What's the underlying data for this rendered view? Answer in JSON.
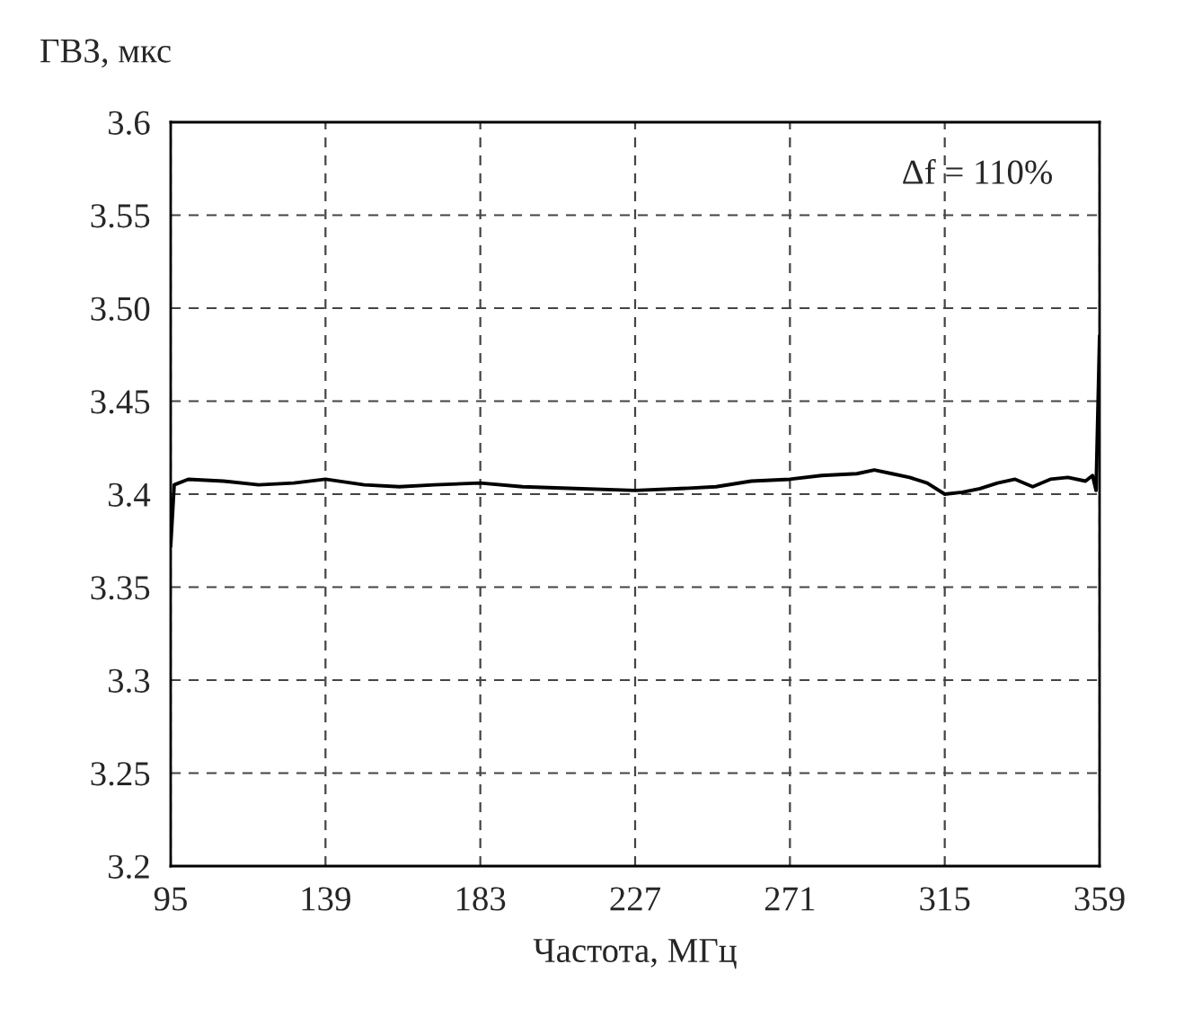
{
  "chart_data": {
    "type": "line",
    "ylabel": "ГВЗ, мкс",
    "xlabel": "Частота, МГц",
    "annotations": [
      "Δf = 110%"
    ],
    "x": [
      95,
      96,
      100,
      110,
      120,
      130,
      139,
      150,
      160,
      170,
      183,
      195,
      210,
      227,
      240,
      250,
      260,
      271,
      280,
      290,
      295,
      300,
      305,
      310,
      315,
      320,
      325,
      330,
      335,
      340,
      345,
      350,
      355,
      357,
      358,
      359
    ],
    "series": [
      {
        "color": "#000000",
        "values": [
          3.372,
          3.405,
          3.408,
          3.407,
          3.405,
          3.406,
          3.408,
          3.405,
          3.404,
          3.405,
          3.406,
          3.404,
          3.403,
          3.402,
          3.403,
          3.404,
          3.407,
          3.408,
          3.41,
          3.411,
          3.413,
          3.411,
          3.409,
          3.406,
          3.4,
          3.401,
          3.403,
          3.406,
          3.408,
          3.404,
          3.408,
          3.409,
          3.407,
          3.41,
          3.402,
          3.485
        ]
      }
    ],
    "xlim": [
      95,
      359
    ],
    "xticks": [
      95,
      139,
      183,
      227,
      271,
      315,
      359
    ],
    "ylim": [
      3.2,
      3.6
    ],
    "yticks": [
      {
        "value": 3.2,
        "label": "3.2"
      },
      3.25,
      {
        "value": 3.3,
        "label": "3.3"
      },
      3.35,
      {
        "value": 3.4,
        "label": "3.4"
      },
      3.45,
      {
        "value": 3.5,
        "label": "3.50"
      },
      3.55,
      {
        "value": 3.6,
        "label": "3.6"
      }
    ],
    "grid": true,
    "marker": "none",
    "line_style": "solid"
  }
}
